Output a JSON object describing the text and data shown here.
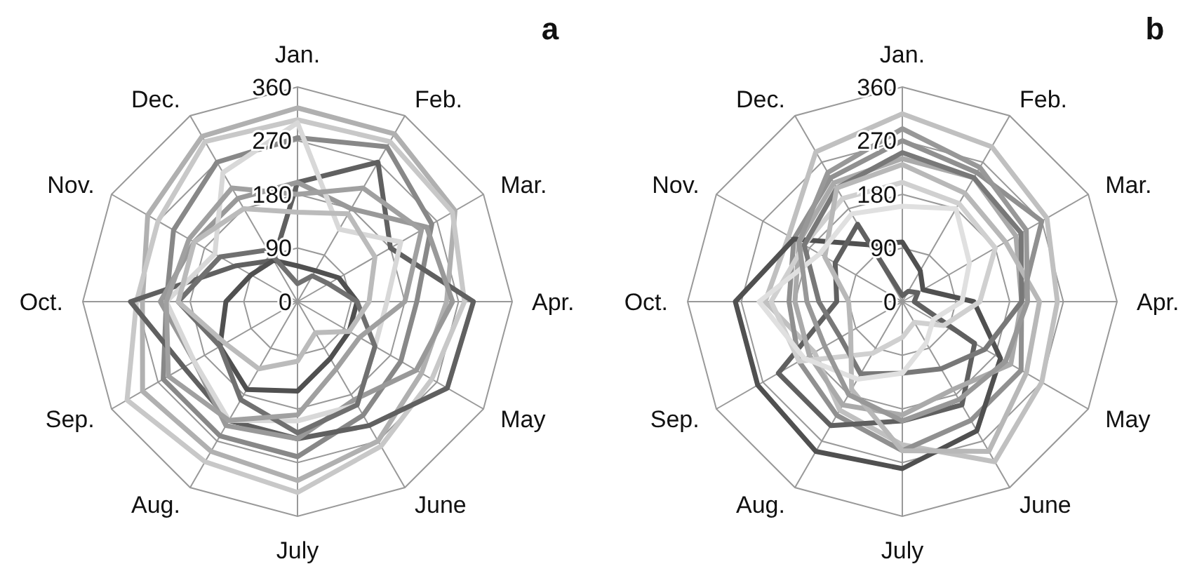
{
  "chart_data": [
    {
      "type": "radar",
      "title": "a",
      "categories": [
        "Jan.",
        "Feb.",
        "Mar.",
        "Apr.",
        "May",
        "June",
        "July",
        "Aug.",
        "Sep.",
        "Oct.",
        "Nov.",
        "Dec."
      ],
      "ylim": [
        0,
        360
      ],
      "yticks": [
        0,
        90,
        180,
        270,
        360
      ],
      "grid": true,
      "series": [
        {
          "color": "#b0b0b0",
          "values": [
            325,
            325,
            305,
            250,
            240,
            270,
            300,
            290,
            300,
            260,
            290,
            320
          ]
        },
        {
          "color": "#c8c8c8",
          "values": [
            305,
            310,
            300,
            280,
            260,
            280,
            320,
            310,
            330,
            270,
            270,
            310
          ]
        },
        {
          "color": "#888888",
          "values": [
            275,
            300,
            260,
            200,
            200,
            220,
            260,
            260,
            260,
            220,
            240,
            270
          ]
        },
        {
          "color": "#606060",
          "values": [
            200,
            270,
            180,
            295,
            290,
            240,
            230,
            230,
            220,
            280,
            120,
            80
          ]
        },
        {
          "color": "#999999",
          "values": [
            200,
            180,
            250,
            260,
            230,
            190,
            230,
            240,
            200,
            230,
            200,
            200
          ]
        },
        {
          "color": "#d8d8d8",
          "values": [
            300,
            140,
            200,
            150,
            150,
            200,
            200,
            230,
            200,
            220,
            160,
            250
          ]
        },
        {
          "color": "#505050",
          "values": [
            60,
            60,
            80,
            100,
            100,
            110,
            150,
            170,
            150,
            120,
            90,
            80
          ]
        },
        {
          "color": "#707070",
          "values": [
            30,
            50,
            60,
            100,
            150,
            200,
            220,
            190,
            150,
            200,
            150,
            100
          ]
        },
        {
          "color": "#bbbbbb",
          "values": [
            150,
            170,
            150,
            120,
            100,
            60,
            100,
            130,
            140,
            200,
            200,
            180
          ]
        },
        {
          "color": "#a0a0a0",
          "values": [
            180,
            220,
            240,
            180,
            120,
            130,
            190,
            230,
            250,
            220,
            210,
            220
          ]
        }
      ]
    },
    {
      "type": "radar",
      "title": "b",
      "categories": [
        "Jan.",
        "Feb.",
        "Mar.",
        "Apr.",
        "May",
        "June",
        "July",
        "Aug.",
        "Sep.",
        "Oct.",
        "Nov.",
        "Dec."
      ],
      "ylim": [
        0,
        360
      ],
      "yticks": [
        0,
        90,
        180,
        270,
        360
      ],
      "grid": true,
      "series": [
        {
          "color": "#c0c0c0",
          "values": [
            315,
            300,
            280,
            260,
            270,
            310,
            240,
            210,
            170,
            230,
            220,
            290
          ]
        },
        {
          "color": "#909090",
          "values": [
            270,
            250,
            270,
            200,
            230,
            230,
            250,
            220,
            200,
            190,
            210,
            240
          ]
        },
        {
          "color": "#505050",
          "values": [
            100,
            60,
            40,
            120,
            190,
            250,
            280,
            290,
            280,
            280,
            210,
            110
          ]
        },
        {
          "color": "#606060",
          "values": [
            10,
            20,
            30,
            20,
            140,
            200,
            200,
            240,
            240,
            110,
            130,
            150
          ]
        },
        {
          "color": "#aaaaaa",
          "values": [
            240,
            240,
            220,
            200,
            210,
            170,
            190,
            200,
            180,
            180,
            200,
            230
          ]
        },
        {
          "color": "#d0d0d0",
          "values": [
            200,
            190,
            180,
            130,
            80,
            40,
            60,
            100,
            200,
            220,
            190,
            200
          ]
        },
        {
          "color": "#787878",
          "values": [
            250,
            240,
            230,
            200,
            160,
            130,
            120,
            140,
            120,
            140,
            190,
            220
          ]
        },
        {
          "color": "#b8b8b8",
          "values": [
            230,
            210,
            200,
            230,
            240,
            290,
            250,
            170,
            100,
            90,
            150,
            220
          ]
        },
        {
          "color": "#e0e0e0",
          "values": [
            160,
            180,
            130,
            100,
            60,
            80,
            120,
            150,
            190,
            240,
            160,
            170
          ]
        },
        {
          "color": "#989898",
          "values": [
            290,
            260,
            240,
            210,
            200,
            190,
            200,
            180,
            150,
            160,
            200,
            250
          ]
        }
      ]
    }
  ]
}
